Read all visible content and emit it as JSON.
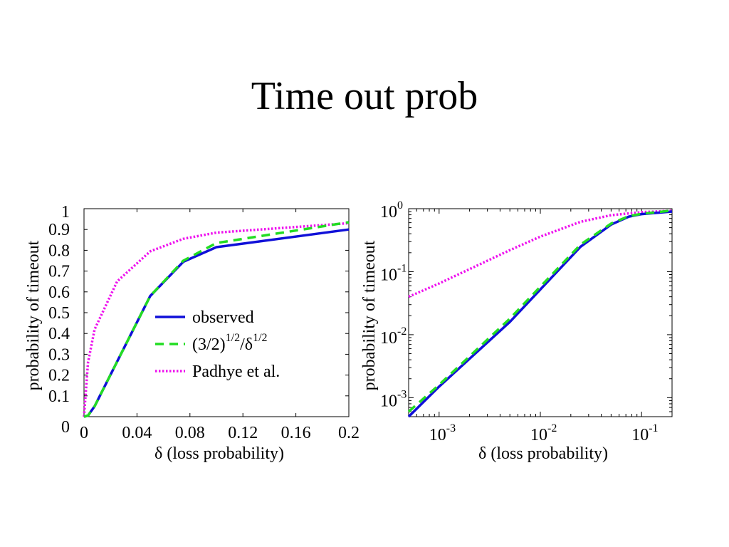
{
  "slide": {
    "title": "Time out prob"
  },
  "colors": {
    "observed": "#1010d8",
    "approx": "#22dd22",
    "padhye": "#ee11ee"
  },
  "chart_data": [
    {
      "type": "line",
      "xscale": "linear",
      "yscale": "linear",
      "xlim": [
        0,
        0.2
      ],
      "ylim": [
        0,
        1
      ],
      "xticks": [
        0,
        0.04,
        0.08,
        0.12,
        0.16,
        0.2
      ],
      "xtick_labels": [
        "0",
        "0.04",
        "0.08",
        "0.12",
        "0.16",
        "0.2"
      ],
      "yticks": [
        0,
        0.1,
        0.2,
        0.3,
        0.4,
        0.5,
        0.6,
        0.7,
        0.8,
        0.9,
        1
      ],
      "ytick_labels": [
        "0",
        "0.1",
        "0.2",
        "0.3",
        "0.4",
        "0.5",
        "0.6",
        "0.7",
        "0.8",
        "0.9",
        "1"
      ],
      "xlabel": {
        "symbol": "δ",
        "text": "(loss probability)"
      },
      "ylabel": "probability of timeout",
      "legend": {
        "placement": "center-right",
        "entries": [
          {
            "label": "observed",
            "style": "solid"
          },
          {
            "label": "(3/2)",
            "sup1": "1/2",
            "mid": "/δ",
            "sup2": "1/2",
            "style": "dashed"
          },
          {
            "label": "Padhye et al.",
            "style": "dotted"
          }
        ]
      },
      "series": [
        {
          "key": "observed",
          "style": "solid",
          "x": [
            0,
            0.003,
            0.008,
            0.05,
            0.075,
            0.1,
            0.2
          ],
          "y": [
            0,
            0.005,
            0.05,
            0.58,
            0.745,
            0.815,
            0.9
          ]
        },
        {
          "key": "approx",
          "style": "dashed",
          "x": [
            0,
            0.003,
            0.008,
            0.05,
            0.075,
            0.1,
            0.2
          ],
          "y": [
            0,
            0.005,
            0.05,
            0.58,
            0.75,
            0.835,
            0.935
          ]
        },
        {
          "key": "padhye",
          "style": "dotted",
          "x": [
            0,
            0.003,
            0.008,
            0.025,
            0.05,
            0.075,
            0.1,
            0.2
          ],
          "y": [
            0,
            0.26,
            0.42,
            0.65,
            0.795,
            0.855,
            0.885,
            0.93
          ]
        }
      ]
    },
    {
      "type": "line",
      "xscale": "log",
      "yscale": "log",
      "xlim": [
        0.0005,
        0.2
      ],
      "ylim": [
        0.0005,
        1
      ],
      "xticks": [
        0.001,
        0.01,
        0.1
      ],
      "xtick_labels": [
        {
          "base": "10",
          "exp": "-3"
        },
        {
          "base": "10",
          "exp": "-2"
        },
        {
          "base": "10",
          "exp": "-1"
        }
      ],
      "yticks": [
        0.001,
        0.01,
        0.1,
        1
      ],
      "ytick_labels": [
        {
          "base": "10",
          "exp": "-3"
        },
        {
          "base": "10",
          "exp": "-2"
        },
        {
          "base": "10",
          "exp": "-1"
        },
        {
          "base": "10",
          "exp": "0"
        }
      ],
      "xlabel": {
        "symbol": "δ",
        "text": "(loss probability)"
      },
      "ylabel": "probability of timeout",
      "series": [
        {
          "key": "observed",
          "style": "solid",
          "x": [
            0.0005,
            0.001,
            0.005,
            0.025,
            0.05,
            0.075,
            0.1,
            0.2
          ],
          "y": [
            0.0005,
            0.0015,
            0.016,
            0.25,
            0.56,
            0.75,
            0.82,
            0.9
          ]
        },
        {
          "key": "approx",
          "style": "dashed",
          "x": [
            0.0005,
            0.001,
            0.005,
            0.025,
            0.05,
            0.075,
            0.1,
            0.2
          ],
          "y": [
            0.0006,
            0.0016,
            0.018,
            0.27,
            0.58,
            0.76,
            0.83,
            0.935
          ]
        },
        {
          "key": "padhye",
          "style": "dotted",
          "x": [
            0.0005,
            0.001,
            0.005,
            0.01,
            0.025,
            0.05,
            0.1,
            0.2
          ],
          "y": [
            0.04,
            0.065,
            0.22,
            0.36,
            0.62,
            0.79,
            0.88,
            0.93
          ]
        }
      ]
    }
  ]
}
